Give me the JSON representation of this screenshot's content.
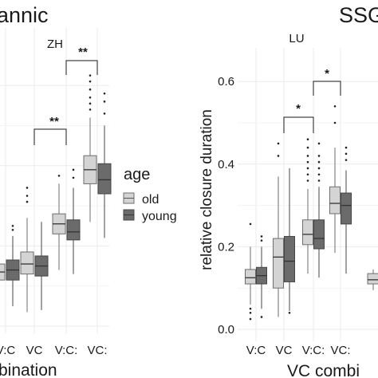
{
  "chart_data": [
    {
      "type": "boxplot",
      "group_title": "annic",
      "facet_label": "ZH",
      "xlabel": "bination",
      "categories": [
        "V:C",
        "VC",
        "V:C:",
        "VC:"
      ],
      "visible_tick_labels": [
        "V:C",
        "VC",
        "V:C:",
        "VC:"
      ],
      "series": [
        {
          "name": "old",
          "color": "#d4d4d4",
          "boxes": [
            {
              "cat": "V:C",
              "whisker_low": 0.045,
              "q1": 0.115,
              "median": 0.135,
              "q3": 0.155,
              "whisker_high": 0.225,
              "outliers": [
                0.245,
                0.255
              ]
            },
            {
              "cat": "VC",
              "whisker_low": 0.035,
              "q1": 0.13,
              "median": 0.155,
              "q3": 0.185,
              "whisker_high": 0.27,
              "outliers": [
                0.31,
                0.325,
                0.345
              ]
            },
            {
              "cat": "V:C:",
              "whisker_low": 0.14,
              "q1": 0.23,
              "median": 0.255,
              "q3": 0.28,
              "whisker_high": 0.355,
              "outliers": [
                0.375
              ]
            },
            {
              "cat": "VC:",
              "whisker_low": 0.26,
              "q1": 0.355,
              "median": 0.39,
              "q3": 0.425,
              "whisker_high": 0.52,
              "outliers": [
                0.54,
                0.555,
                0.57,
                0.59,
                0.61,
                0.625
              ]
            }
          ]
        },
        {
          "name": "young",
          "color": "#6b6b6b",
          "boxes": [
            {
              "cat": "V:C",
              "whisker_low": 0.05,
              "q1": 0.115,
              "median": 0.14,
              "q3": 0.165,
              "whisker_high": 0.225,
              "outliers": [
                0.24,
                0.25
              ]
            },
            {
              "cat": "VC",
              "whisker_low": 0.04,
              "q1": 0.125,
              "median": 0.15,
              "q3": 0.175,
              "whisker_high": 0.26,
              "outliers": []
            },
            {
              "cat": "V:C:",
              "whisker_low": 0.13,
              "q1": 0.215,
              "median": 0.235,
              "q3": 0.265,
              "whisker_high": 0.345,
              "outliers": [
                0.37,
                0.39
              ]
            },
            {
              "cat": "VC:",
              "whisker_low": 0.22,
              "q1": 0.33,
              "median": 0.365,
              "q3": 0.405,
              "whisker_high": 0.5,
              "outliers": [
                0.53,
                0.56,
                0.58
              ]
            }
          ]
        }
      ],
      "annotations": [
        {
          "text": "**",
          "from": "VC",
          "to": "V:C:"
        },
        {
          "text": "**",
          "from": "V:C:",
          "to": "VC:"
        }
      ]
    },
    {
      "type": "boxplot",
      "group_title": "SSG",
      "facet_label": "LU",
      "ylabel": "relative closure duration",
      "xlabel": "VC combi",
      "categories": [
        "V:C",
        "VC",
        "V:C:",
        "VC:"
      ],
      "y_ticks": [
        "0.0",
        "0.2",
        "0.4",
        "0.6"
      ],
      "ylim": [
        -0.02,
        0.64
      ],
      "series": [
        {
          "name": "old",
          "color": "#d4d4d4",
          "boxes": [
            {
              "cat": "V:C",
              "whisker_low": 0.06,
              "q1": 0.11,
              "median": 0.125,
              "q3": 0.145,
              "whisker_high": 0.2,
              "outliers": [
                0.025,
                0.04,
                0.05,
                0.255
              ]
            },
            {
              "cat": "VC",
              "whisker_low": 0.03,
              "q1": 0.1,
              "median": 0.175,
              "q3": 0.22,
              "whisker_high": 0.37,
              "outliers": [
                0.42,
                0.45
              ]
            },
            {
              "cat": "V:C:",
              "whisker_low": 0.135,
              "q1": 0.205,
              "median": 0.23,
              "q3": 0.265,
              "whisker_high": 0.34,
              "outliers": [
                0.36,
                0.375,
                0.39,
                0.405,
                0.42,
                0.44,
                0.46
              ]
            },
            {
              "cat": "VC:",
              "whisker_low": 0.185,
              "q1": 0.28,
              "median": 0.305,
              "q3": 0.345,
              "whisker_high": 0.44,
              "outliers": [
                0.5,
                0.54
              ]
            }
          ]
        },
        {
          "name": "young",
          "color": "#6b6b6b",
          "boxes": [
            {
              "cat": "V:C",
              "whisker_low": 0.05,
              "q1": 0.11,
              "median": 0.13,
              "q3": 0.15,
              "whisker_high": 0.2,
              "outliers": [
                0.03,
                0.215,
                0.225
              ]
            },
            {
              "cat": "VC",
              "whisker_low": 0.045,
              "q1": 0.115,
              "median": 0.165,
              "q3": 0.225,
              "whisker_high": 0.39,
              "outliers": [
                0.04
              ]
            },
            {
              "cat": "V:C:",
              "whisker_low": 0.125,
              "q1": 0.195,
              "median": 0.22,
              "q3": 0.265,
              "whisker_high": 0.345,
              "outliers": [
                0.36,
                0.375,
                0.39,
                0.405,
                0.42,
                0.45
              ]
            },
            {
              "cat": "VC:",
              "whisker_low": 0.135,
              "q1": 0.255,
              "median": 0.3,
              "q3": 0.33,
              "whisker_high": 0.385,
              "outliers": [
                0.41,
                0.425,
                0.44
              ]
            }
          ]
        }
      ],
      "annotations": [
        {
          "text": "*",
          "from": "VC",
          "to": "V:C:"
        },
        {
          "text": "*",
          "from": "V:C:",
          "to": "VC:"
        }
      ],
      "partial_next_panel": {
        "whisker_low": 0.095,
        "q1": 0.11,
        "median": 0.12,
        "q3": 0.135,
        "whisker_high": 0.145
      }
    }
  ],
  "legend": {
    "title": "age",
    "items": [
      {
        "label": "old",
        "color": "#d4d4d4"
      },
      {
        "label": "young",
        "color": "#6b6b6b"
      }
    ]
  }
}
